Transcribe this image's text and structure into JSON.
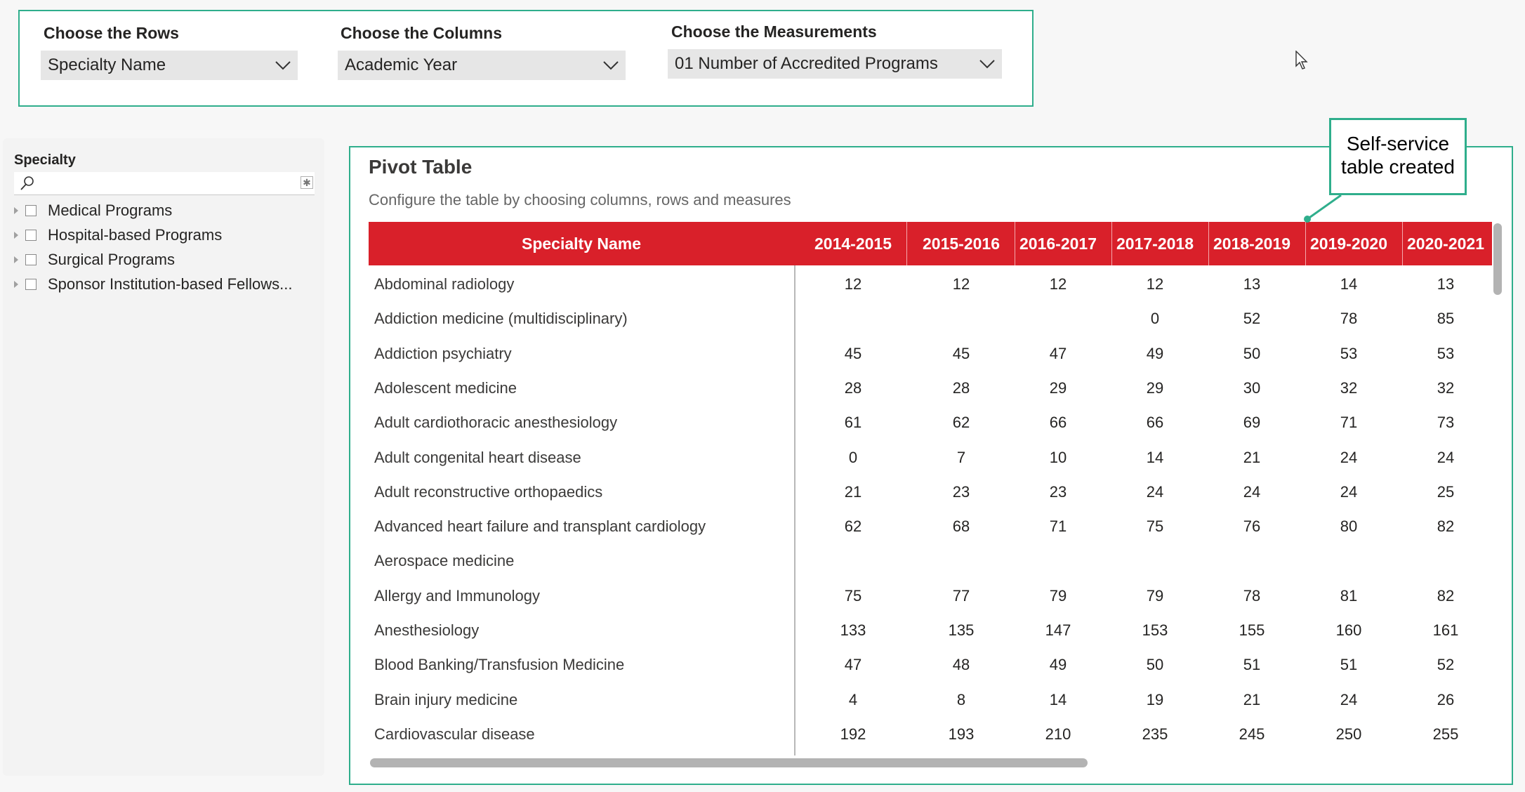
{
  "controls": [
    {
      "label": "Choose the Rows",
      "value": "Specialty Name"
    },
    {
      "label": "Choose the Columns",
      "value": "Academic Year"
    },
    {
      "label": "Choose the Measurements",
      "value": "01 Number of Accredited Programs"
    }
  ],
  "slicer": {
    "title": "Specialty",
    "items": [
      "Medical Programs",
      "Hospital-based Programs",
      "Surgical Programs",
      "Sponsor Institution-based Fellows..."
    ]
  },
  "pivot": {
    "title": "Pivot Table",
    "subtitle": "Configure the table by choosing columns, rows and measures",
    "row_header": "Specialty Name",
    "columns": [
      "2014-2015",
      "2015-2016",
      "2016-2017",
      "2017-2018",
      "2018-2019",
      "2019-2020",
      "2020-2021"
    ],
    "rows": [
      {
        "name": "Abdominal radiology",
        "values": [
          "12",
          "12",
          "12",
          "12",
          "13",
          "14",
          "13"
        ]
      },
      {
        "name": "Addiction medicine (multidisciplinary)",
        "values": [
          "",
          "",
          "",
          "0",
          "52",
          "78",
          "85"
        ]
      },
      {
        "name": "Addiction psychiatry",
        "values": [
          "45",
          "45",
          "47",
          "49",
          "50",
          "53",
          "53"
        ]
      },
      {
        "name": "Adolescent medicine",
        "values": [
          "28",
          "28",
          "29",
          "29",
          "30",
          "32",
          "32"
        ]
      },
      {
        "name": "Adult cardiothoracic anesthesiology",
        "values": [
          "61",
          "62",
          "66",
          "66",
          "69",
          "71",
          "73"
        ]
      },
      {
        "name": "Adult congenital heart disease",
        "values": [
          "0",
          "7",
          "10",
          "14",
          "21",
          "24",
          "24"
        ]
      },
      {
        "name": "Adult reconstructive orthopaedics",
        "values": [
          "21",
          "23",
          "23",
          "24",
          "24",
          "24",
          "25"
        ]
      },
      {
        "name": "Advanced heart failure and transplant cardiology",
        "values": [
          "62",
          "68",
          "71",
          "75",
          "76",
          "80",
          "82"
        ]
      },
      {
        "name": "Aerospace medicine",
        "values": [
          "",
          "",
          "",
          "",
          "",
          "",
          ""
        ]
      },
      {
        "name": "Allergy and Immunology",
        "values": [
          "75",
          "77",
          "79",
          "79",
          "78",
          "81",
          "82"
        ]
      },
      {
        "name": "Anesthesiology",
        "values": [
          "133",
          "135",
          "147",
          "153",
          "155",
          "160",
          "161"
        ]
      },
      {
        "name": "Blood Banking/Transfusion Medicine",
        "values": [
          "47",
          "48",
          "49",
          "50",
          "51",
          "51",
          "52"
        ]
      },
      {
        "name": "Brain injury medicine",
        "values": [
          "4",
          "8",
          "14",
          "19",
          "21",
          "24",
          "26"
        ]
      },
      {
        "name": "Cardiovascular disease",
        "values": [
          "192",
          "193",
          "210",
          "235",
          "245",
          "250",
          "255"
        ]
      }
    ]
  },
  "annotation": {
    "text_line1": "Self-service",
    "text_line2": "table created"
  },
  "colors": {
    "accent": "#2fae8c",
    "header": "#d9202a"
  },
  "icons": [
    "chevron-down-icon",
    "search-icon",
    "clear-selection-icon",
    "expand-triangle-icon",
    "mouse-cursor-icon"
  ]
}
